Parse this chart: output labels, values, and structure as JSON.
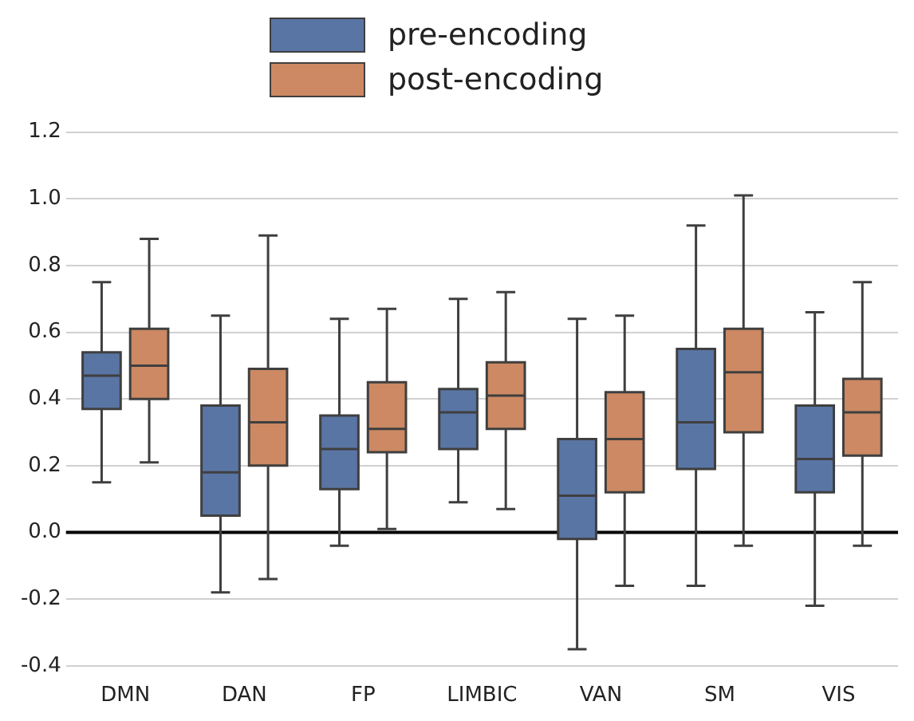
{
  "chart_data": {
    "type": "box",
    "categories": [
      "DMN",
      "DAN",
      "FP",
      "LIMBIC",
      "VAN",
      "SM",
      "VIS"
    ],
    "series": [
      {
        "name": "pre-encoding",
        "color": "#5975a4",
        "boxes": [
          {
            "low": 0.15,
            "q1": 0.37,
            "median": 0.47,
            "q3": 0.54,
            "high": 0.75
          },
          {
            "low": -0.18,
            "q1": 0.05,
            "median": 0.18,
            "q3": 0.38,
            "high": 0.65
          },
          {
            "low": -0.04,
            "q1": 0.13,
            "median": 0.25,
            "q3": 0.35,
            "high": 0.64
          },
          {
            "low": 0.09,
            "q1": 0.25,
            "median": 0.36,
            "q3": 0.43,
            "high": 0.7
          },
          {
            "low": -0.35,
            "q1": -0.02,
            "median": 0.11,
            "q3": 0.28,
            "high": 0.64
          },
          {
            "low": -0.16,
            "q1": 0.19,
            "median": 0.33,
            "q3": 0.55,
            "high": 0.92
          },
          {
            "low": -0.22,
            "q1": 0.12,
            "median": 0.22,
            "q3": 0.38,
            "high": 0.66
          }
        ]
      },
      {
        "name": "post-encoding",
        "color": "#cc8963",
        "boxes": [
          {
            "low": 0.21,
            "q1": 0.4,
            "median": 0.5,
            "q3": 0.61,
            "high": 0.88
          },
          {
            "low": -0.14,
            "q1": 0.2,
            "median": 0.33,
            "q3": 0.49,
            "high": 0.89
          },
          {
            "low": 0.01,
            "q1": 0.24,
            "median": 0.31,
            "q3": 0.45,
            "high": 0.67
          },
          {
            "low": 0.07,
            "q1": 0.31,
            "median": 0.41,
            "q3": 0.51,
            "high": 0.72
          },
          {
            "low": -0.16,
            "q1": 0.12,
            "median": 0.28,
            "q3": 0.42,
            "high": 0.65
          },
          {
            "low": -0.04,
            "q1": 0.3,
            "median": 0.48,
            "q3": 0.61,
            "high": 1.01
          },
          {
            "low": -0.04,
            "q1": 0.23,
            "median": 0.36,
            "q3": 0.46,
            "high": 0.75
          }
        ]
      }
    ],
    "ylim": [
      -0.4,
      1.2
    ],
    "yticks": [
      -0.4,
      -0.2,
      {
        "value": 0,
        "label": "0.0"
      },
      0.2,
      0.4,
      0.6,
      0.8,
      {
        "value": 1,
        "label": "1.0"
      },
      1.2
    ],
    "ref_lines": [
      {
        "axis": "y",
        "value": 0,
        "color": "#000000"
      }
    ],
    "grid": "y",
    "legend": "top"
  }
}
